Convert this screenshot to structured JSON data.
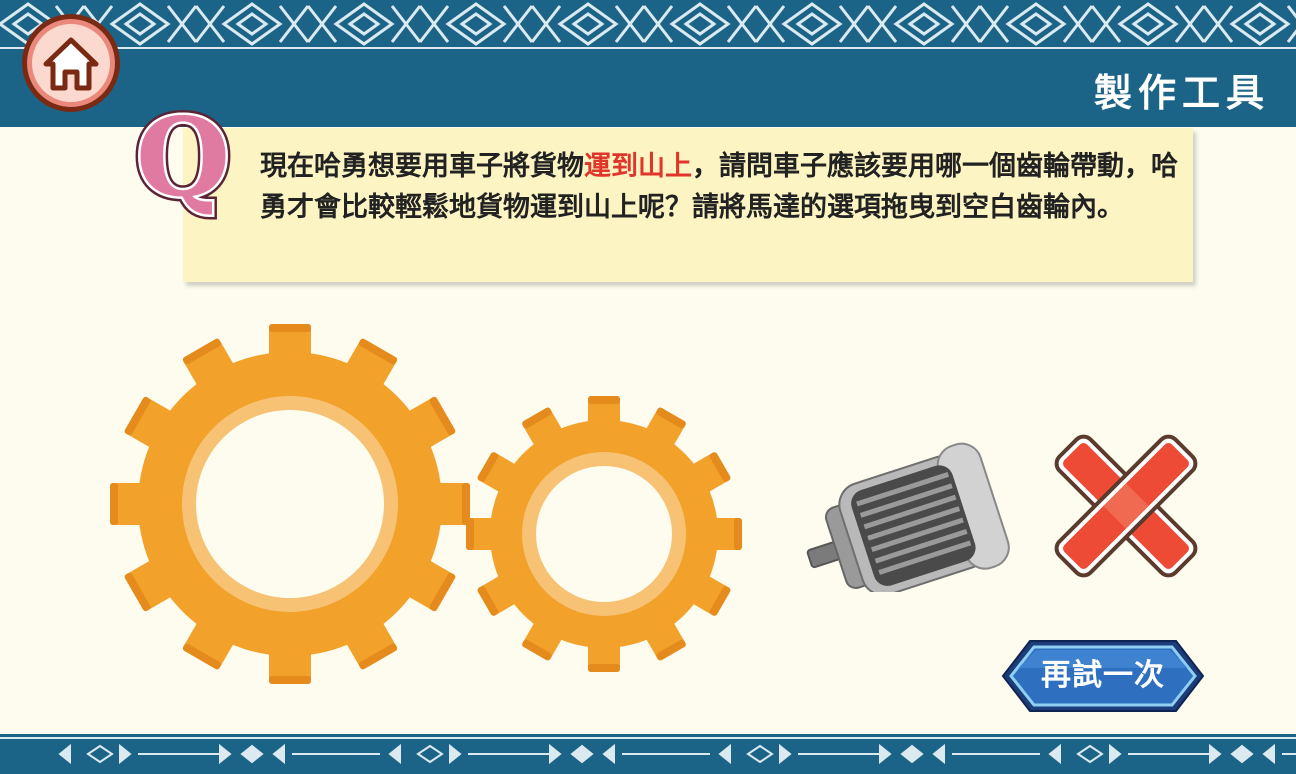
{
  "header": {
    "title": "製作工具"
  },
  "question": {
    "prefix": "現在哈勇想要用車子將貨物",
    "highlight": "運到山上",
    "suffix": "，請問車子應該要用哪一個齒輪帶動，哈勇才會比較輕鬆地貨物運到山上呢？請將馬達的選項拖曳到空白齒輪內。",
    "highlight_color": "#e0352a"
  },
  "icons": {
    "home": "home-icon",
    "question_mark": "q-letter-icon",
    "motor": "motor-icon",
    "wrong": "cross-icon"
  },
  "buttons": {
    "retry_label": "再試一次"
  },
  "colors": {
    "banner": "#1c6487",
    "gear": "#f2a12a",
    "background": "#fdfcef",
    "question_box": "#fcf5c3"
  }
}
